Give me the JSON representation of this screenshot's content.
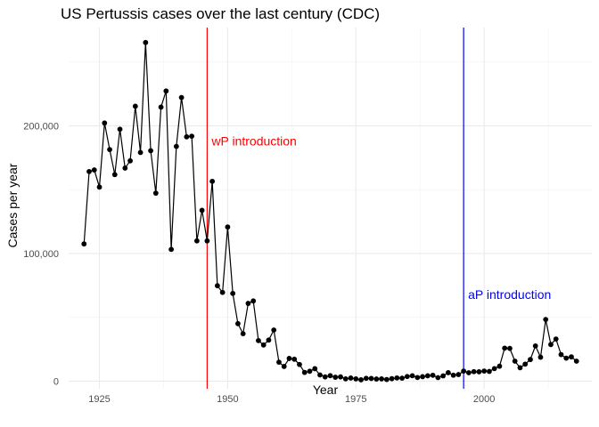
{
  "chart_data": {
    "type": "line",
    "title": "US Pertussis cases over the last century (CDC)",
    "xlabel": "Year",
    "ylabel": "Cases per year",
    "xlim": [
      1919,
      2021
    ],
    "ylim": [
      -6000,
      277000
    ],
    "x_ticks": [
      1925,
      1950,
      1975,
      2000
    ],
    "y_ticks": [
      0,
      100000,
      200000
    ],
    "y_tick_labels": [
      "0",
      "100,000",
      "200,000"
    ],
    "grid": true,
    "line_color": "#000000",
    "series": [
      {
        "x": [
          1922,
          1923,
          1924,
          1925,
          1926,
          1927,
          1928,
          1929,
          1930,
          1931,
          1932,
          1933,
          1934,
          1935,
          1936,
          1937,
          1938,
          1939,
          1940,
          1941,
          1942,
          1943,
          1944,
          1945,
          1946,
          1947,
          1948,
          1949,
          1950,
          1951,
          1952,
          1953,
          1954,
          1955,
          1956,
          1957,
          1958,
          1959,
          1960,
          1961,
          1962,
          1963,
          1964,
          1965,
          1966,
          1967,
          1968,
          1969,
          1970,
          1971,
          1972,
          1973,
          1974,
          1975,
          1976,
          1977,
          1978,
          1979,
          1980,
          1981,
          1982,
          1983,
          1984,
          1985,
          1986,
          1987,
          1988,
          1989,
          1990,
          1991,
          1992,
          1993,
          1994,
          1995,
          1996,
          1997,
          1998,
          1999,
          2000,
          2001,
          2002,
          2003,
          2004,
          2005,
          2006,
          2007,
          2008,
          2009,
          2010,
          2011,
          2012,
          2013,
          2014,
          2015,
          2016,
          2017,
          2018
        ],
        "y": [
          107473,
          164191,
          165418,
          152003,
          202210,
          181411,
          161799,
          197371,
          166914,
          172559,
          215343,
          179135,
          265269,
          180518,
          147237,
          214652,
          227319,
          103188,
          183866,
          222202,
          191383,
          191890,
          109873,
          133792,
          109860,
          156517,
          74715,
          69479,
          120718,
          68687,
          45030,
          37129,
          60886,
          62786,
          31732,
          28295,
          32148,
          40005,
          14809,
          11468,
          17749,
          17135,
          13005,
          6799,
          7717,
          9718,
          4810,
          3285,
          4249,
          3036,
          3287,
          1759,
          2402,
          1738,
          1010,
          2177,
          2063,
          1623,
          1730,
          1248,
          1895,
          2463,
          2276,
          3589,
          4195,
          2823,
          3450,
          4157,
          4570,
          2719,
          4083,
          6586,
          4617,
          5137,
          7796,
          6564,
          7405,
          7288,
          7867,
          7580,
          9771,
          11647,
          25827,
          25616,
          15632,
          10454,
          13278,
          16858,
          27550,
          18719,
          48277,
          28639,
          32971,
          20762,
          17972,
          18975,
          15609
        ]
      }
    ],
    "annotations": [
      {
        "label": "wP introduction",
        "x": 1946,
        "label_y": 188000,
        "color": "#ff0000"
      },
      {
        "label": "aP introduction",
        "x": 1996,
        "label_y": 68000,
        "color": "#0000ff"
      }
    ]
  }
}
